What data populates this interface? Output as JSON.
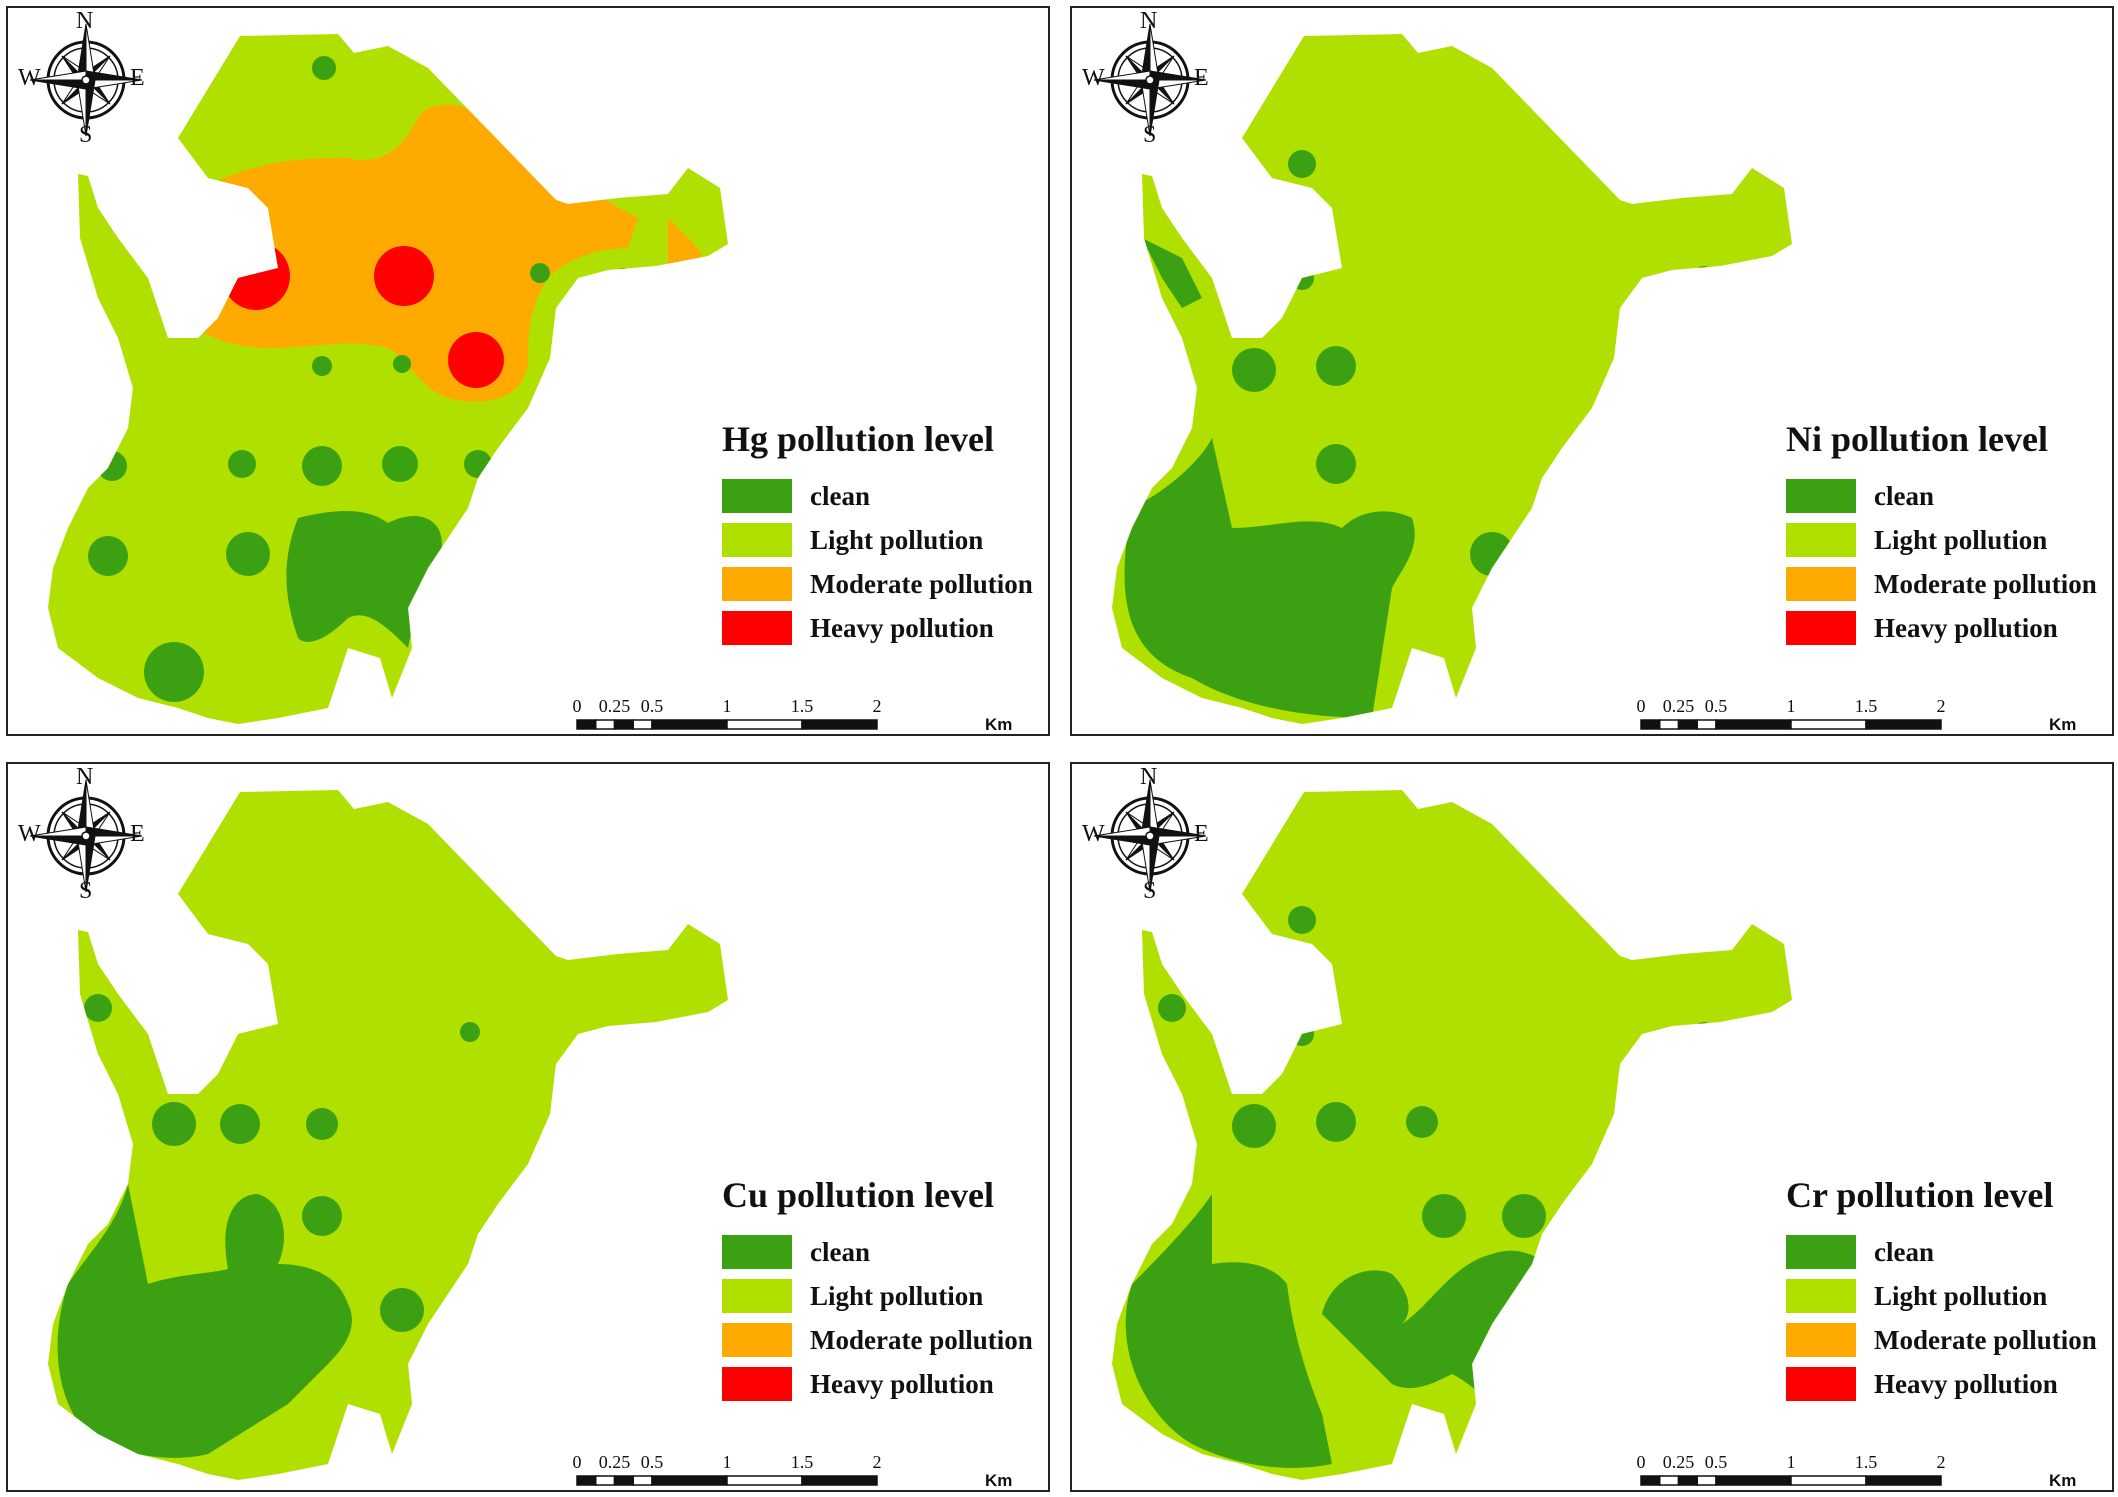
{
  "colors": {
    "clean": "#3ca112",
    "light": "#b0e000",
    "moderate": "#ffaa00",
    "heavy": "#ff0000"
  },
  "compass": {
    "north": "N",
    "south": "S",
    "east": "E",
    "west": "W",
    "icon": "compass-rose-icon"
  },
  "legend_items": [
    {
      "key": "clean",
      "label": "clean"
    },
    {
      "key": "light",
      "label": "Light pollution"
    },
    {
      "key": "moderate",
      "label": "Moderate pollution"
    },
    {
      "key": "heavy",
      "label": "Heavy pollution"
    }
  ],
  "scale": {
    "ticks": [
      "0",
      "0.25",
      "0.5",
      "1",
      "1.5",
      "2"
    ],
    "unit": "Km"
  },
  "panels": [
    {
      "id": "hg",
      "metal": "Hg",
      "title": "Hg pollution level"
    },
    {
      "id": "ni",
      "metal": "Ni",
      "title": "Ni pollution level"
    },
    {
      "id": "cu",
      "metal": "Cu",
      "title": "Cu pollution level"
    },
    {
      "id": "cr",
      "metal": "Cr",
      "title": "Cr pollution level"
    }
  ]
}
